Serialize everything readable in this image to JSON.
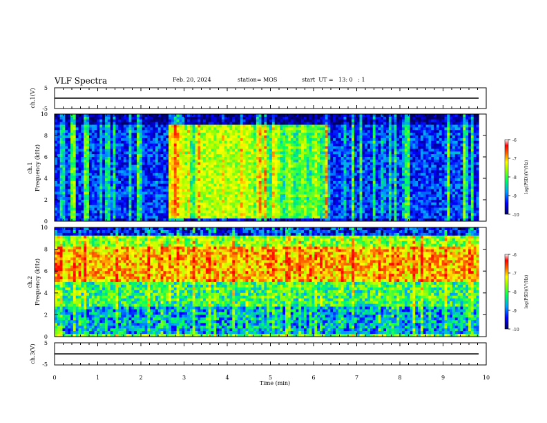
{
  "header": {
    "title": "VLF Spectra",
    "date": "Feb. 20, 2024",
    "station": "station= MOS",
    "start": "start  UT =   13: 0   : 1"
  },
  "chart_data": [
    {
      "type": "line",
      "name": "ch1-waveform",
      "ylabel": "ch.1(V)",
      "ylim": [
        -5,
        5
      ],
      "yticks": [
        "5",
        "-5"
      ],
      "xlim": [
        0,
        10
      ],
      "values_note_level": -1.2
    },
    {
      "type": "heatmap",
      "name": "ch1-spectrogram",
      "ylabel_top": "ch.1",
      "ylabel": "Frequency (kHz)",
      "ylim": [
        0,
        10
      ],
      "yticks": [
        "0",
        "2",
        "4",
        "6",
        "8",
        "10"
      ],
      "xlim": [
        0,
        10
      ],
      "colorbar": {
        "label": "log(PSD)(V²/Hz)",
        "ticks": [
          "-6",
          "-7",
          "-8",
          "-9",
          "-10"
        ],
        "range": [
          -10,
          -6
        ]
      }
    },
    {
      "type": "heatmap",
      "name": "ch2-spectrogram",
      "ylabel_top": "ch.2",
      "ylabel": "Frequency (kHz)",
      "ylim": [
        0,
        10
      ],
      "yticks": [
        "0",
        "2",
        "4",
        "6",
        "8",
        "10"
      ],
      "xlim": [
        0,
        10
      ],
      "colorbar": {
        "label": "log(PSD)(V²/Hz)",
        "ticks": [
          "-6",
          "-7",
          "-8",
          "-9",
          "-10"
        ],
        "range": [
          -10,
          -6
        ]
      }
    },
    {
      "type": "line",
      "name": "ch3-waveform",
      "ylabel": "ch.3(V)",
      "ylim": [
        -5,
        5
      ],
      "yticks": [
        "5",
        "-5"
      ],
      "xlim": [
        0,
        10
      ],
      "xlabel": "Time  (min)",
      "xticks": [
        "0",
        "1",
        "2",
        "3",
        "4",
        "5",
        "6",
        "7",
        "8",
        "9",
        "10"
      ],
      "values_note_level": -1.2
    }
  ],
  "palette": [
    "#000080",
    "#0000ff",
    "#0080ff",
    "#00ffff",
    "#00ff80",
    "#80ff00",
    "#ffff00",
    "#ff8000",
    "#ff0000",
    "#ffffff"
  ]
}
